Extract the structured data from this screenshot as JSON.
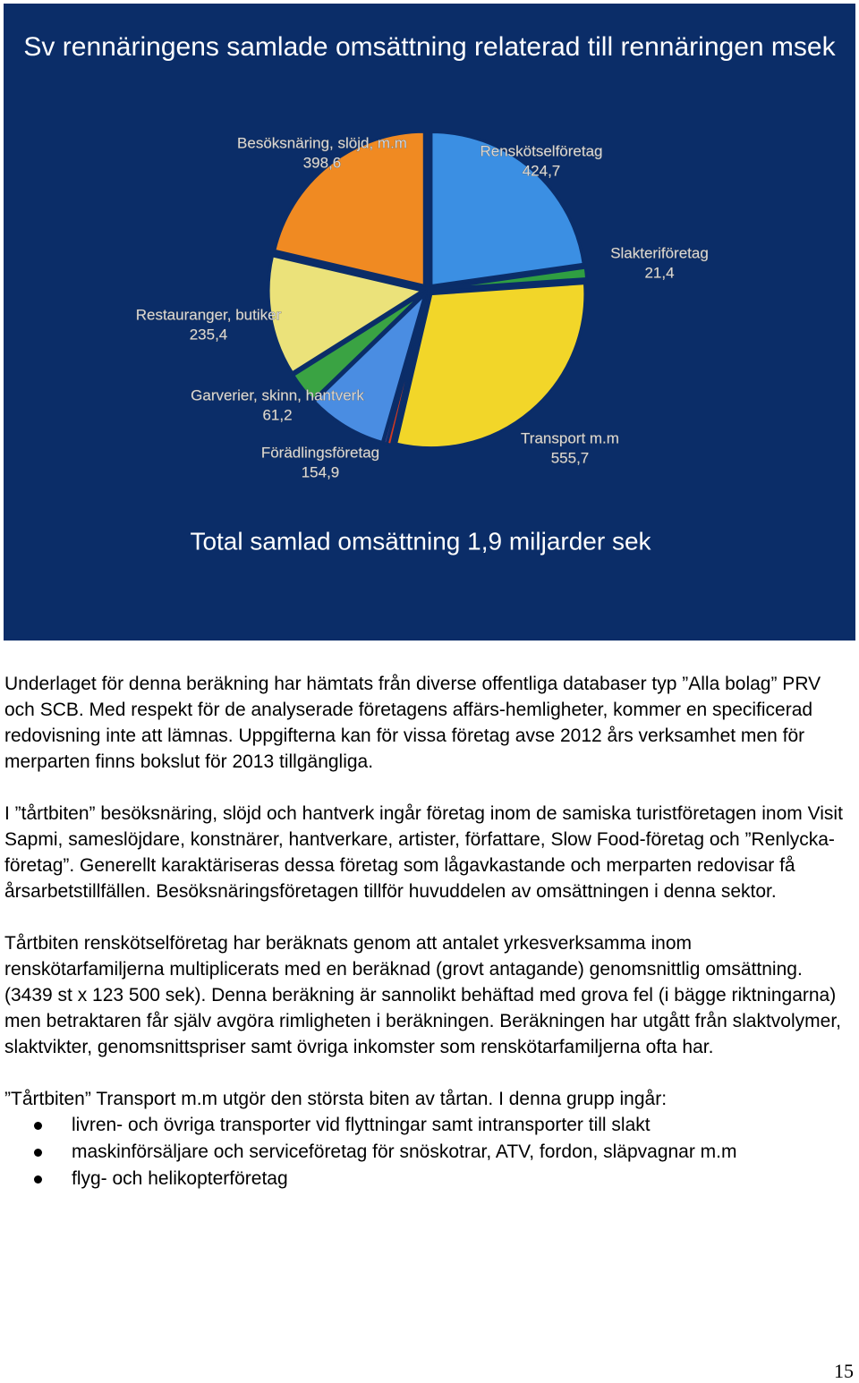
{
  "chart_data": {
    "type": "pie",
    "title": "Sv rennäringens samlade omsättning relaterad till rennäringen msek",
    "subtitle": "Total samlad omsättning 1,9 miljarder sek",
    "categories": [
      "Renskötselföretag",
      "Slakteriföretag",
      "Transport m.m",
      null,
      null,
      "Förädlingsföretag",
      "Garverier, skinn, hantverk",
      "Restauranger, butiker",
      "Besöksnäring, slöjd, m.m"
    ],
    "values": [
      424.7,
      21.4,
      555.7,
      9,
      6,
      154.9,
      61.2,
      235.4,
      398.6
    ],
    "value_labels": [
      "424,7",
      "21,4",
      "555,7",
      null,
      null,
      "154,9",
      "61,2",
      "235,4",
      "398,6"
    ],
    "colors": [
      "#3b8fe3",
      "#2f9e42",
      "#f2d629",
      "#d23a22",
      "#7b4a9c",
      "#4a8de2",
      "#3aa343",
      "#ebe27a",
      "#f08a22"
    ]
  },
  "paragraphs": [
    "Underlaget för denna beräkning har hämtats från diverse offentliga databaser typ ”Alla bolag” PRV och SCB. Med respekt för de analyserade företagens affärs-hemligheter, kommer en specificerad redovisning inte att lämnas. Uppgifterna kan för vissa företag avse 2012 års verksamhet men för merparten finns bokslut för 2013 tillgängliga.",
    "I ”tårtbiten” besöksnäring, slöjd och hantverk ingår företag inom de samiska turistföretagen inom Visit Sapmi, sameslöjdare, konstnärer, hantverkare, artister, författare, Slow Food-företag och ”Renlycka-företag”. Generellt karaktäriseras dessa företag som lågavkastande och merparten redovisar få årsarbetstillfällen. Besöksnäringsföretagen tillför huvuddelen av omsättningen i denna sektor.",
    "Tårtbiten renskötselföretag har beräknats genom att antalet yrkesverksamma inom renskötarfamiljerna multiplicerats med en beräknad (grovt antagande) genomsnittlig omsättning. (3439 st x 123 500 sek). Denna beräkning är sannolikt behäftad med grova fel (i bägge riktningarna) men betraktaren får själv avgöra rimligheten i beräkningen. Beräkningen har utgått från slaktvolymer, slaktvikter, genomsnittspriser samt övriga inkomster som renskötarfamiljerna ofta har."
  ],
  "list_intro": "”Tårtbiten” Transport m.m utgör den största biten av tårtan. I denna grupp ingår:",
  "bullets": [
    "livren- och övriga transporter vid flyttningar samt intransporter till slakt",
    "maskinförsäljare och serviceföretag för snöskotrar, ATV, fordon, släpvagnar m.m",
    "flyg- och helikopterföretag"
  ],
  "page_number": "15"
}
